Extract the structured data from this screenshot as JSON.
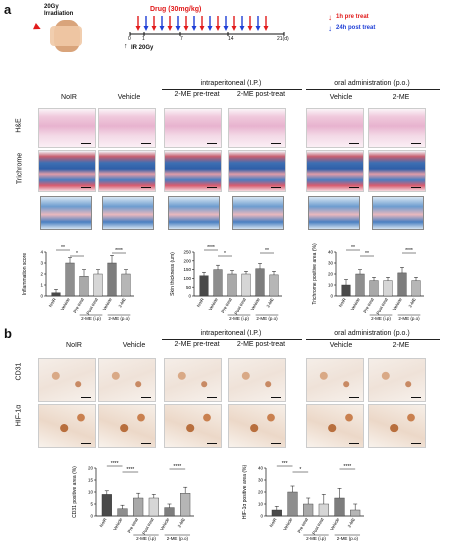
{
  "panel_a": "a",
  "panel_b": "b",
  "scheme": {
    "irr_top": "20Gy",
    "irr_bottom": "Irradiation",
    "drug": "Drug (30mg/kg)",
    "ticks": [
      "0",
      "1",
      "7",
      "14",
      "21(d)"
    ],
    "ir": "IR 20Gy",
    "legend_pre": "1h pre treat",
    "legend_post": "24h post treat",
    "red": "#e11b1b",
    "blue": "#1f3fd6"
  },
  "headers_a": {
    "noir": "NoIR",
    "vehicle": "Vehicle",
    "ip": "intraperitoneal (I.P.)",
    "po": "oral administration (p.o.)",
    "pre": "2-ME pre-treat",
    "post": "2-ME post-treat",
    "veh_po": "Vehicle",
    "me": "2-ME"
  },
  "rows_a": [
    "H&E",
    "Trichrome"
  ],
  "headers_b": {
    "noir": "NoIR",
    "vehicle": "Vehicle",
    "ip": "intraperitoneal (I.P.)",
    "po": "oral administration (p.o.)",
    "pre": "2-ME pre-treat",
    "post": "2-ME post-treat",
    "veh_po": "Vehicle",
    "me": "2-ME"
  },
  "rows_b": [
    "CD31",
    "HIF-1α"
  ],
  "chart_data": [
    {
      "type": "bar",
      "ylabel": "Inflammation score",
      "categories": [
        "NoIR",
        "Vehicle",
        "Pre treat",
        "Post treat",
        "Vehicle",
        "2-ME"
      ],
      "values": [
        0.3,
        3.0,
        1.8,
        2.0,
        3.0,
        2.0
      ],
      "errors": [
        0.3,
        0.5,
        0.6,
        0.4,
        0.7,
        0.4
      ],
      "yticks": [
        "0",
        "1",
        "2",
        "3",
        "4"
      ],
      "ylim": [
        0,
        4
      ],
      "groups": [
        "2-ME (i.p)",
        "2-ME (p.o)"
      ],
      "sig": [
        "**",
        "*",
        "****"
      ]
    },
    {
      "type": "bar",
      "ylabel": "Skin thickness (um)",
      "categories": [
        "NoIR",
        "Vehicle",
        "Pre treat",
        "Post treat",
        "Vehicle",
        "2-ME"
      ],
      "values": [
        115,
        150,
        125,
        125,
        155,
        120
      ],
      "errors": [
        20,
        25,
        20,
        15,
        30,
        20
      ],
      "yticks": [
        "0",
        "50",
        "100",
        "150",
        "200",
        "250"
      ],
      "ylim": [
        0,
        250
      ],
      "groups": [
        "2-ME (i.p)",
        "2-ME (p.o)"
      ],
      "sig": [
        "****",
        "*",
        "**"
      ]
    },
    {
      "type": "bar",
      "ylabel": "Trichrome positive area (%)",
      "categories": [
        "NoIR",
        "Vehicle",
        "Pre treat",
        "Post treat",
        "Vehicle",
        "2-ME"
      ],
      "values": [
        10,
        20,
        14,
        14,
        21,
        14
      ],
      "errors": [
        5,
        4,
        3,
        3,
        5,
        3
      ],
      "yticks": [
        "0",
        "10",
        "20",
        "30",
        "40"
      ],
      "ylim": [
        0,
        40
      ],
      "groups": [
        "2-ME (i.p)",
        "2-ME (p.o)"
      ],
      "sig": [
        "**",
        "**",
        "****"
      ]
    },
    {
      "type": "bar",
      "ylabel": "CD31 positive area (%)",
      "categories": [
        "NoIR",
        "Vehicle",
        "Pre treat",
        "Post treat",
        "Vehicle",
        "2-ME"
      ],
      "values": [
        9,
        3,
        7.5,
        7.5,
        3.5,
        9.5
      ],
      "errors": [
        1.5,
        1.5,
        2,
        1.5,
        1.5,
        2.5
      ],
      "yticks": [
        "0",
        "5",
        "10",
        "15",
        "20"
      ],
      "ylim": [
        0,
        20
      ],
      "groups": [
        "2-ME (i.p)",
        "2-ME (p.o)"
      ],
      "sig": [
        "****",
        "****",
        "****"
      ]
    },
    {
      "type": "bar",
      "ylabel": "HIF-1α positive area (%)",
      "categories": [
        "NoIR",
        "Vehicle",
        "Pre treat",
        "Post treat",
        "Vehicle",
        "2-ME"
      ],
      "values": [
        5,
        20,
        10,
        10,
        15,
        5
      ],
      "errors": [
        3,
        5,
        5,
        8,
        8,
        5
      ],
      "yticks": [
        "0",
        "10",
        "20",
        "30",
        "40"
      ],
      "ylim": [
        0,
        40
      ],
      "groups": [
        "2-ME (i.p)",
        "2-ME (p.o)"
      ],
      "sig": [
        "***",
        "*",
        "****"
      ]
    }
  ]
}
